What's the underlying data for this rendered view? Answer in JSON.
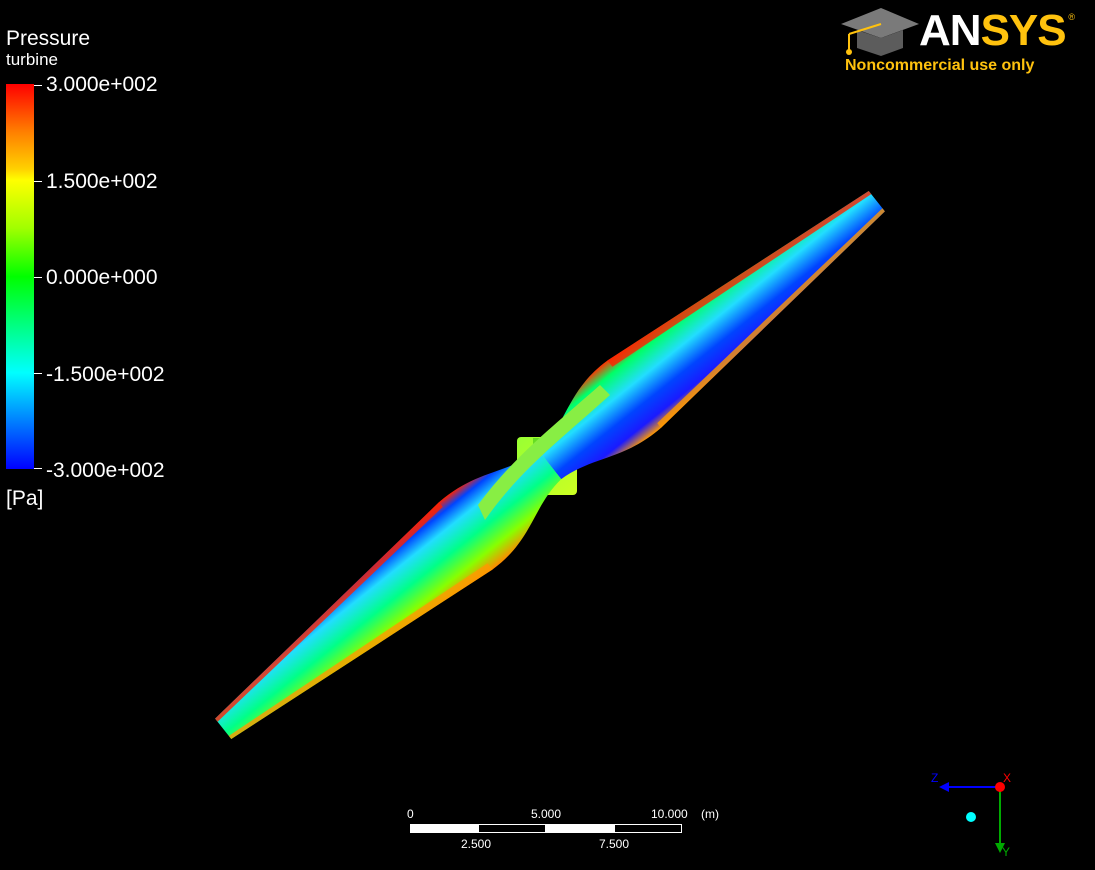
{
  "legend": {
    "title": "Pressure",
    "subtitle": "turbine",
    "ticks": [
      "3.000e+002",
      "1.500e+002",
      "0.000e+000",
      "-1.500e+002",
      "-3.000e+002"
    ],
    "unit": "[Pa]",
    "colors": [
      "#ff0000",
      "#ffff00",
      "#00ff00",
      "#00ffff",
      "#0000ff"
    ]
  },
  "logo": {
    "word_part1": "AN",
    "word_part2": "SYS",
    "registered": "®",
    "note": "Noncommercial use only",
    "accent": "#ffc20e"
  },
  "scale_bar": {
    "top_labels": [
      "0",
      "5.000",
      "10.000"
    ],
    "unit": "(m)",
    "bottom_labels": [
      "2.500",
      "7.500"
    ]
  },
  "axis_triad": {
    "labels": [
      "Z",
      "X",
      "Y"
    ],
    "colors": {
      "z": "#0000ff",
      "x": "#ff0000",
      "y": "#00aa00",
      "origin": "#00ffff"
    }
  }
}
